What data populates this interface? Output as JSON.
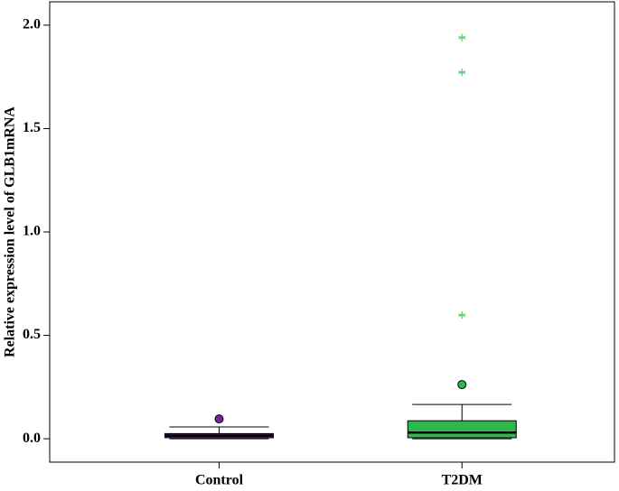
{
  "chart_data": {
    "type": "box",
    "y_label": "Relative expression level of GLB1mRNA",
    "categories": [
      "Control",
      "T2DM"
    ],
    "boxes": [
      {
        "color": "#7a1fa2",
        "min": 0.0,
        "q1": 0.005,
        "median": 0.015,
        "q3": 0.025,
        "max": 0.057,
        "outliers": [
          0.096
        ],
        "extremes": []
      },
      {
        "color": "#2db84a",
        "min": 0.0,
        "q1": 0.005,
        "median": 0.03,
        "q3": 0.087,
        "max": 0.166,
        "outliers": [
          0.262
        ],
        "extremes": [
          0.598,
          1.772,
          1.94
        ]
      }
    ],
    "extreme_color": "#5cd16c",
    "ylim": [
      -0.113,
      2.113
    ],
    "yticks": [
      {
        "value": 0,
        "label": "0.0"
      },
      {
        "value": 0.5,
        "label": "0.5"
      },
      {
        "value": 1,
        "label": "1.0"
      },
      {
        "value": 1.5,
        "label": "1.5"
      },
      {
        "value": 2,
        "label": "2.0"
      }
    ]
  }
}
